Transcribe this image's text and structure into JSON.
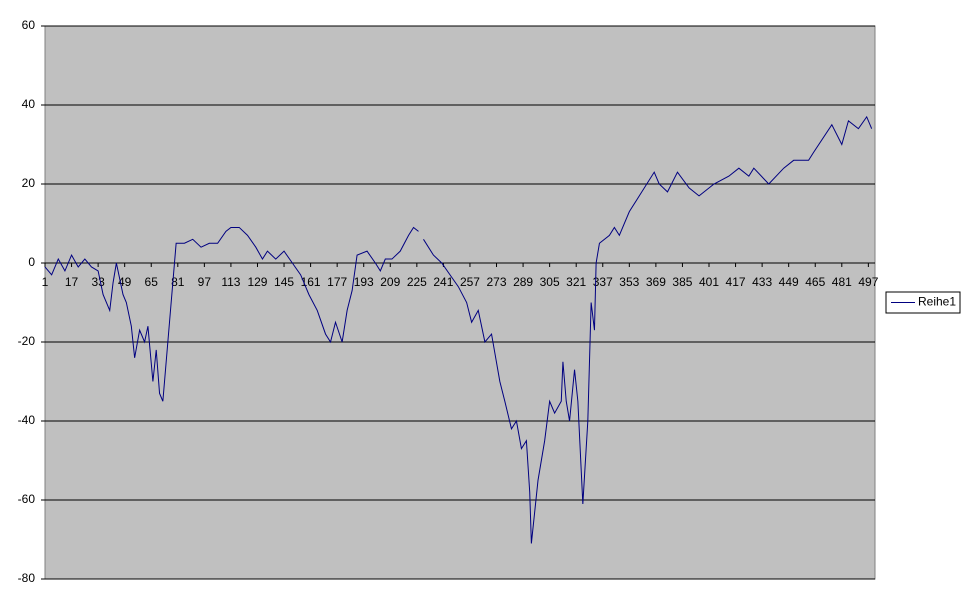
{
  "chart_data": {
    "type": "line",
    "x": [
      1,
      5,
      9,
      13,
      17,
      21,
      25,
      29,
      33,
      36,
      40,
      42,
      44,
      48,
      50,
      53,
      55,
      58,
      61,
      63,
      66,
      68,
      70,
      72,
      75,
      78,
      80,
      85,
      90,
      95,
      100,
      105,
      110,
      113,
      118,
      123,
      128,
      132,
      135,
      140,
      145,
      150,
      155,
      160,
      165,
      170,
      173,
      176,
      180,
      183,
      186,
      189,
      195,
      200,
      203,
      206,
      210,
      215,
      220,
      223,
      226,
      227,
      229,
      235,
      240,
      245,
      250,
      255,
      258,
      262,
      266,
      270,
      275,
      278,
      282,
      285,
      288,
      291,
      293,
      294,
      298,
      302,
      305,
      308,
      312,
      313,
      315,
      317,
      320,
      322,
      325,
      328,
      330,
      332,
      333,
      335,
      341,
      344,
      347,
      353,
      359,
      368,
      371,
      376,
      382,
      389,
      395,
      404,
      413,
      419,
      425,
      428,
      437,
      446,
      452,
      461,
      464,
      475,
      481,
      485,
      491,
      496,
      499
    ],
    "series": [
      {
        "name": "Reihe1",
        "color": "#000080",
        "values": [
          -1,
          -3,
          1,
          -2,
          2,
          -1,
          1,
          -1,
          -2,
          -8,
          -12,
          -5,
          0,
          -8,
          -10,
          -16,
          -24,
          -17,
          -20,
          -16,
          -30,
          -22,
          -33,
          -35,
          -20,
          -5,
          5,
          5,
          6,
          4,
          5,
          5,
          8,
          9,
          9,
          7,
          4,
          1,
          3,
          1,
          3,
          0,
          -3,
          -8,
          -12,
          -18,
          -20,
          -15,
          -20,
          -12,
          -7,
          2,
          3,
          0,
          -2,
          1,
          1,
          3,
          7,
          9,
          8,
          null,
          6,
          2,
          0,
          -3,
          -6,
          -10,
          -15,
          -12,
          -20,
          -18,
          -30,
          -35,
          -42,
          -40,
          -47,
          -45,
          -58,
          -71,
          -55,
          -45,
          -35,
          -38,
          -35,
          -25,
          -35,
          -40,
          -27,
          -35,
          -61,
          -40,
          -10,
          -17,
          0,
          5,
          7,
          9,
          7,
          13,
          17,
          23,
          20,
          18,
          23,
          19,
          17,
          20,
          22,
          24,
          22,
          24,
          20,
          24,
          26,
          26,
          28,
          35,
          30,
          36,
          34,
          37,
          34
        ]
      }
    ],
    "xlim": [
      1,
      501
    ],
    "xticks": [
      1,
      17,
      33,
      49,
      65,
      81,
      97,
      113,
      129,
      145,
      161,
      177,
      193,
      209,
      225,
      241,
      257,
      273,
      289,
      305,
      321,
      337,
      353,
      369,
      385,
      401,
      417,
      433,
      449,
      465,
      481,
      497
    ],
    "ylim": [
      -80,
      60
    ],
    "yticks": [
      -80,
      -60,
      -40,
      -20,
      0,
      20,
      40,
      60
    ],
    "grid": true,
    "legend": "right",
    "background": "#c0c0c0"
  }
}
